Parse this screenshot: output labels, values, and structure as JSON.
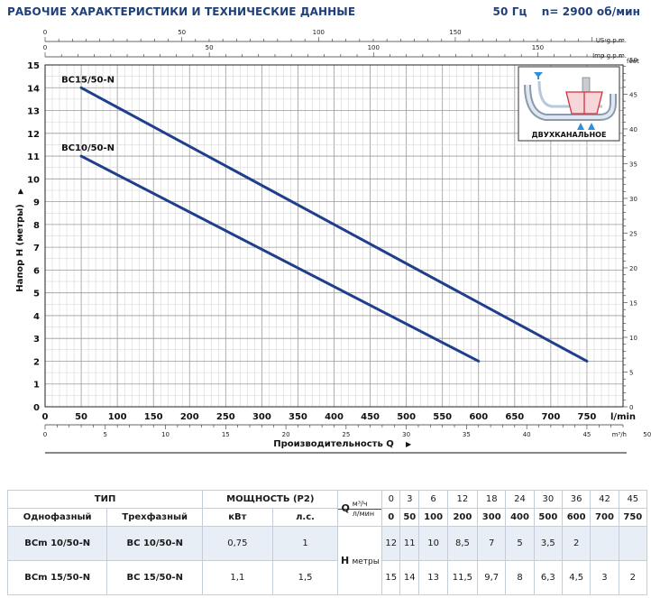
{
  "header": {
    "title": "РАБОЧИЕ ХАРАКТЕРИСТИКИ И ТЕХНИЧЕСКИЕ ДАННЫЕ",
    "freq": "50 Гц",
    "rpm": "n= 2900 об/мин"
  },
  "chart_data": {
    "type": "line",
    "xlabel": "Производительность Q",
    "ylabel": "Напор H (метры)",
    "x_unit": "l/min",
    "xlim": [
      0,
      800
    ],
    "ylim": [
      0,
      15
    ],
    "x_ticks": [
      0,
      50,
      100,
      150,
      200,
      250,
      300,
      350,
      400,
      450,
      500,
      550,
      600,
      650,
      700,
      750
    ],
    "y_ticks": [
      0,
      1,
      2,
      3,
      4,
      5,
      6,
      7,
      8,
      9,
      10,
      11,
      12,
      13,
      14,
      15
    ],
    "top_axes": [
      {
        "unit": "US g.p.m.",
        "ticks": [
          0,
          50,
          100,
          150
        ]
      },
      {
        "unit": "Imp g.p.m.",
        "ticks": [
          0,
          50,
          100,
          150
        ]
      }
    ],
    "bottom_axis": {
      "unit": "m³/h",
      "ticks": [
        0,
        5,
        10,
        15,
        20,
        25,
        30,
        35,
        40,
        45,
        50
      ]
    },
    "right_axis": {
      "unit": "feet",
      "ticks": [
        0,
        5,
        10,
        15,
        20,
        25,
        30,
        35,
        40,
        45,
        50
      ]
    },
    "grid": true,
    "series": [
      {
        "name": "BC10/50-N",
        "color": "#1f3f8c",
        "x": [
          50,
          600
        ],
        "y": [
          11,
          2
        ]
      },
      {
        "name": "BC15/50-N",
        "color": "#1f3f8c",
        "x": [
          50,
          750
        ],
        "y": [
          14,
          2
        ]
      }
    ],
    "inset": {
      "label": "ДВУХКАНАЛЬНОЕ"
    }
  },
  "table": {
    "type_label": "ТИП",
    "power_label": "МОЩНОСТЬ (P2)",
    "q_label": "Q",
    "q_unit_m3": "м³/ч",
    "q_unit_lmin": "л/мин",
    "col_single": "Однофазный",
    "col_three": "Трехфазный",
    "col_kw": "кВт",
    "col_hp": "л.с.",
    "h_label": "H",
    "h_unit": "метры",
    "q_m3h": [
      "0",
      "3",
      "6",
      "12",
      "18",
      "24",
      "30",
      "36",
      "42",
      "45"
    ],
    "q_lmin": [
      "0",
      "50",
      "100",
      "200",
      "300",
      "400",
      "500",
      "600",
      "700",
      "750"
    ],
    "rows": [
      {
        "single": "BCm 10/50-N",
        "three": "BC 10/50-N",
        "kw": "0,75",
        "hp": "1",
        "h": [
          "12",
          "11",
          "10",
          "8,5",
          "7",
          "5",
          "3,5",
          "2",
          "",
          ""
        ]
      },
      {
        "single": "BCm 15/50-N",
        "three": "BC 15/50-N",
        "kw": "1,1",
        "hp": "1,5",
        "h": [
          "15",
          "14",
          "13",
          "11,5",
          "9,7",
          "8",
          "6,3",
          "4,5",
          "3",
          "2"
        ]
      }
    ]
  }
}
